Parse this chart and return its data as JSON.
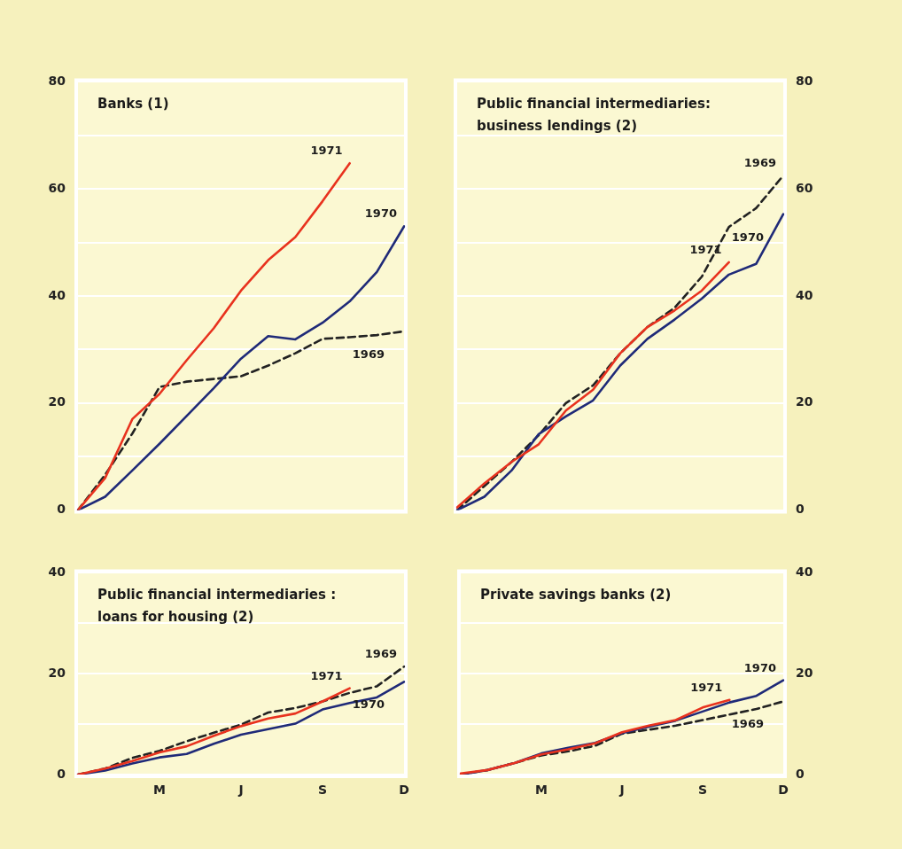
{
  "chart_data": [
    {
      "type": "line",
      "title": "Banks (1)",
      "categories": [
        null,
        null,
        null,
        null,
        null,
        null,
        null,
        null,
        null,
        null,
        null,
        null,
        null
      ],
      "series": [
        {
          "name": "1971",
          "color": "#e8321e",
          "values": [
            0,
            6,
            17,
            21.7,
            28,
            34,
            41,
            46.7,
            51,
            57.7,
            64.8,
            null,
            null
          ]
        },
        {
          "name": "1970",
          "color": "#1f2a78",
          "values": [
            0,
            2.5,
            7.4,
            12.4,
            17.6,
            22.8,
            28.3,
            32.5,
            31.9,
            35,
            39,
            44.5,
            53
          ]
        },
        {
          "name": "1969",
          "color": "#222222",
          "line_style": "dashed",
          "values": [
            0,
            6.6,
            14.3,
            23,
            24,
            24.5,
            25,
            27,
            29.3,
            32,
            32.3,
            32.7,
            33.4
          ]
        }
      ],
      "ylim": [
        0,
        80
      ],
      "yticks": [
        0,
        {
          "value": 10,
          "label": null
        },
        20,
        {
          "value": 30,
          "label": null
        },
        40,
        {
          "value": 50,
          "label": null
        },
        60,
        {
          "value": 70,
          "label": null
        },
        80
      ],
      "grid": "y",
      "tick_labels": "y"
    },
    {
      "type": "line",
      "title": "Public financial intermediaries: business lendings (2)",
      "categories": [
        null,
        null,
        null,
        null,
        null,
        null,
        null,
        null,
        null,
        null,
        null,
        null,
        null
      ],
      "series": [
        {
          "name": "1971",
          "color": "#e8321e",
          "values": [
            0.5,
            5,
            9,
            12.3,
            18.6,
            22.5,
            29.3,
            34.2,
            37.3,
            41,
            46.3,
            null,
            null
          ]
        },
        {
          "name": "1970",
          "color": "#1f2a78",
          "values": [
            0,
            2.5,
            7.4,
            14.2,
            17.5,
            20.5,
            27,
            32,
            35.6,
            39.5,
            44,
            46,
            55.3
          ]
        },
        {
          "name": "1969",
          "color": "#222222",
          "line_style": "dashed",
          "values": [
            0,
            4.5,
            9,
            14,
            20,
            23.3,
            29.3,
            34.2,
            37.8,
            43.6,
            52.9,
            56.4,
            62.5
          ]
        }
      ],
      "ylim": [
        0,
        80
      ],
      "yticks": [
        0,
        {
          "value": 10,
          "label": null
        },
        20,
        {
          "value": 30,
          "label": null
        },
        40,
        {
          "value": 50,
          "label": null
        },
        60,
        {
          "value": 70,
          "label": null
        },
        80
      ],
      "grid": "y",
      "tick_labels": "y"
    },
    {
      "type": "line",
      "title": "Public financial intermediaries : loans for housing (2)",
      "categories": [
        null,
        null,
        null,
        "M",
        null,
        null,
        "J",
        null,
        null,
        "S",
        null,
        null,
        "D"
      ],
      "series": [
        {
          "name": "1971",
          "color": "#e8321e",
          "values": [
            0,
            1.2,
            2.7,
            4.4,
            5.6,
            7.7,
            9.6,
            11.1,
            12.1,
            14.5,
            17.1,
            null,
            null
          ]
        },
        {
          "name": "1970",
          "color": "#1f2a78",
          "values": [
            0,
            0.8,
            2.2,
            3.4,
            4.1,
            6.1,
            7.9,
            9,
            10.1,
            12.9,
            14.2,
            15.3,
            18.4
          ]
        },
        {
          "name": "1969",
          "color": "#222222",
          "line_style": "dashed",
          "values": [
            0,
            1.2,
            3.3,
            4.7,
            6.6,
            8.3,
            9.9,
            12.3,
            13.2,
            14.5,
            16.2,
            17.5,
            21.4
          ]
        }
      ],
      "ylim": [
        0,
        40
      ],
      "yticks": [
        0,
        {
          "value": 10,
          "label": null
        },
        20,
        {
          "value": 30,
          "label": null
        },
        40
      ],
      "grid": "y"
    },
    {
      "type": "line",
      "title": "Private savings banks (2)",
      "categories": [
        null,
        null,
        null,
        "M",
        null,
        null,
        "J",
        null,
        null,
        "S",
        null,
        null,
        "D"
      ],
      "series": [
        {
          "name": "1971",
          "color": "#e8321e",
          "values": [
            0.2,
            0.9,
            2.3,
            4,
            5,
            6.2,
            8.4,
            9.7,
            10.8,
            13.3,
            14.8,
            null,
            null
          ]
        },
        {
          "name": "1970",
          "color": "#1f2a78",
          "values": [
            0,
            0.9,
            2.3,
            4.2,
            5.3,
            6.3,
            8.2,
            9.5,
            10.7,
            12.5,
            14.3,
            15.6,
            18.7
          ]
        },
        {
          "name": "1969",
          "color": "#222222",
          "line_style": "dashed",
          "values": [
            0,
            0.9,
            2.3,
            3.8,
            4.6,
            5.7,
            8.1,
            8.9,
            9.7,
            10.8,
            11.9,
            13,
            14.5
          ]
        }
      ],
      "ylim": [
        0,
        40
      ],
      "yticks": [
        0,
        {
          "value": 10,
          "label": null
        },
        20,
        {
          "value": 30,
          "label": null
        },
        40
      ],
      "grid": "y"
    }
  ]
}
